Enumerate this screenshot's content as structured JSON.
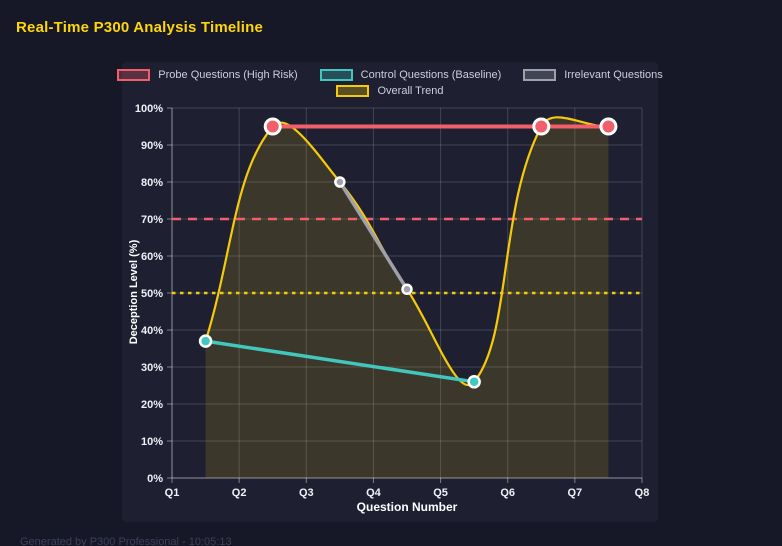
{
  "page": {
    "title": "Real-Time P300 Analysis Timeline",
    "footer": "Generated by P300 Professional - 10:05:13"
  },
  "colors": {
    "page-bg": "#161828",
    "panel-bg": "#1e2032",
    "title-color": "#ffd60a",
    "threshold-high": "#f25f6a",
    "threshold-mid": "#f5ca0a"
  },
  "chart_data": {
    "type": "line",
    "title": "Real-Time P300 Analysis Timeline",
    "xlabel": "Question Number",
    "ylabel": "Deception Level (%)",
    "xlim": [
      1,
      8
    ],
    "ylim": [
      0,
      100
    ],
    "grid": true,
    "legend_position": "top",
    "x_ticks": [
      {
        "v": 1,
        "label": "Q1"
      },
      {
        "v": 2,
        "label": "Q2"
      },
      {
        "v": 3,
        "label": "Q3"
      },
      {
        "v": 4,
        "label": "Q4"
      },
      {
        "v": 5,
        "label": "Q5"
      },
      {
        "v": 6,
        "label": "Q6"
      },
      {
        "v": 7,
        "label": "Q7"
      },
      {
        "v": 8,
        "label": "Q8"
      }
    ],
    "y_ticks": [
      {
        "v": 0,
        "label": "0%"
      },
      {
        "v": 10,
        "label": "10%"
      },
      {
        "v": 20,
        "label": "20%"
      },
      {
        "v": 30,
        "label": "30%"
      },
      {
        "v": 40,
        "label": "40%"
      },
      {
        "v": 50,
        "label": "50%"
      },
      {
        "v": 60,
        "label": "60%"
      },
      {
        "v": 70,
        "label": "70%"
      },
      {
        "v": 80,
        "label": "80%"
      },
      {
        "v": 90,
        "label": "90%"
      },
      {
        "v": 100,
        "label": "100%"
      }
    ],
    "series": [
      {
        "name": "Probe Questions (High Risk)",
        "color": "#f25f6a",
        "points": [
          [
            2.5,
            95
          ],
          [
            6.5,
            95
          ],
          [
            7.5,
            95
          ]
        ],
        "line_width": 4,
        "point_radius": 7.5,
        "smooth": false,
        "fill": false
      },
      {
        "name": "Control Questions (Baseline)",
        "color": "#41c7bd",
        "points": [
          [
            1.5,
            37
          ],
          [
            5.5,
            26
          ]
        ],
        "line_width": 3.5,
        "point_radius": 5.5,
        "smooth": false,
        "fill": false
      },
      {
        "name": "Irrelevant Questions",
        "color": "#9fa0aa",
        "points": [
          [
            3.5,
            80
          ],
          [
            4.5,
            51
          ]
        ],
        "line_width": 3.5,
        "point_radius": 4.5,
        "smooth": false,
        "fill": false
      },
      {
        "name": "Overall Trend",
        "color": "#f5ca0a",
        "points": [
          [
            1.5,
            37
          ],
          [
            2.5,
            95
          ],
          [
            3.5,
            80
          ],
          [
            4.5,
            51
          ],
          [
            5.5,
            26
          ],
          [
            6.5,
            95
          ],
          [
            7.5,
            95
          ]
        ],
        "line_width": 2.2,
        "point_radius": 0,
        "smooth": true,
        "fill": true,
        "fill_color": "rgba(255,215,0,0.13)"
      }
    ],
    "annotations": [
      {
        "type": "hline",
        "y": 70,
        "color": "#f25f6a",
        "dash": "dashed"
      },
      {
        "type": "hline",
        "y": 50,
        "color": "#f5ca0a",
        "dash": "dotted"
      }
    ],
    "legend_rows": [
      [
        0,
        1,
        2
      ],
      [
        3
      ]
    ]
  }
}
